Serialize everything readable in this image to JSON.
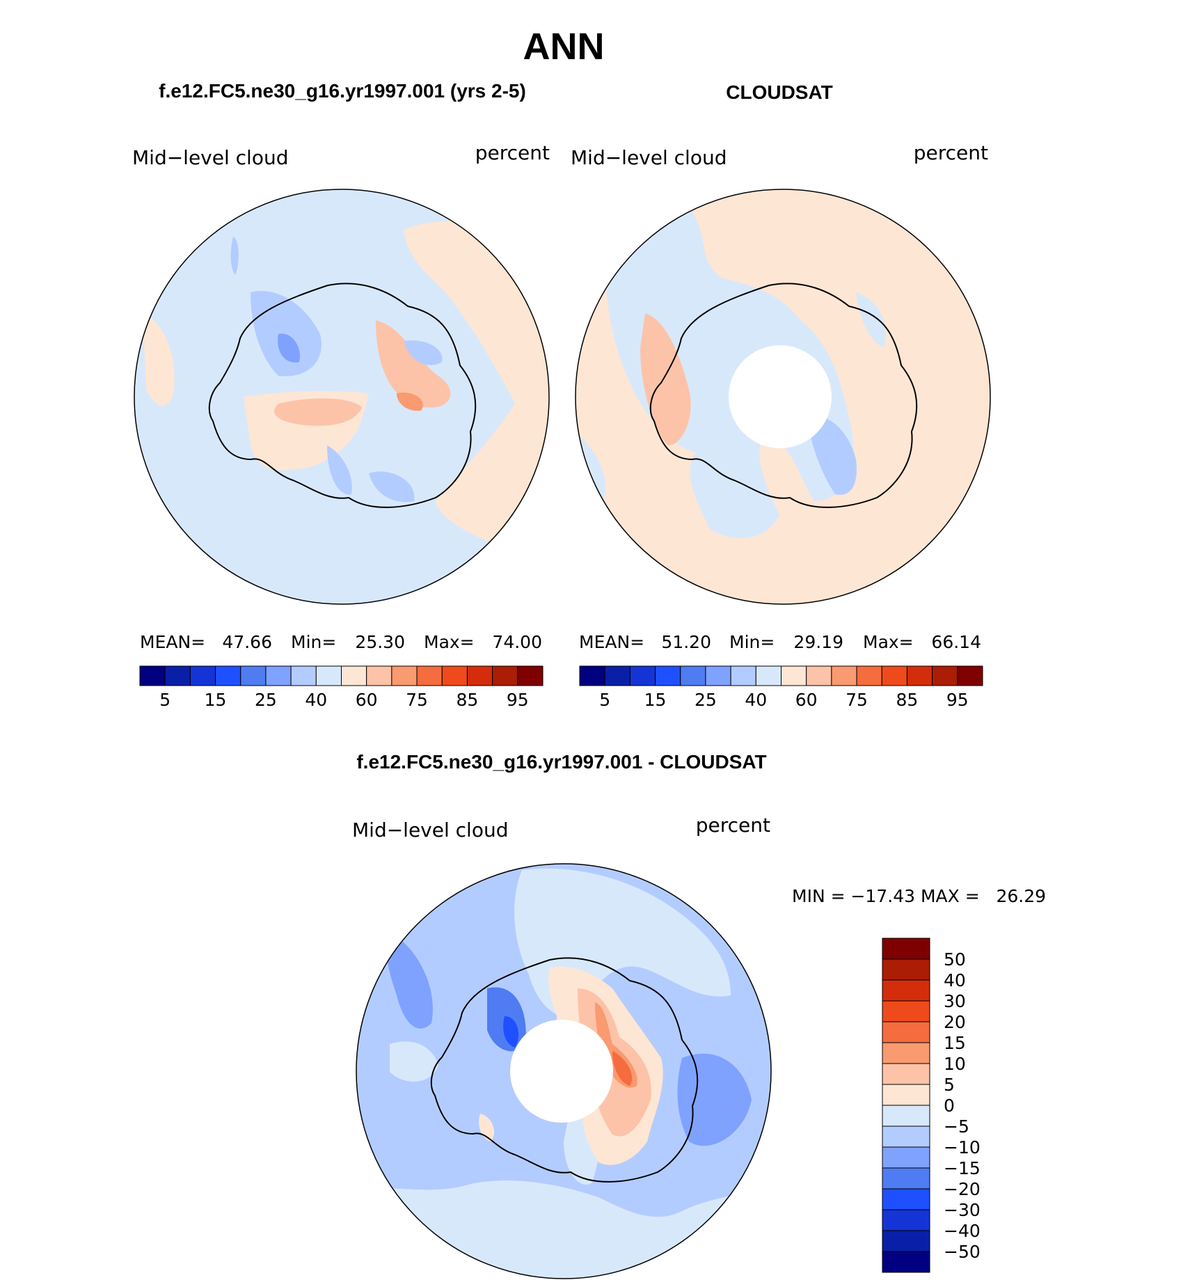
{
  "main_title": "ANN",
  "colors": {
    "abs_scale": [
      "#000080",
      "#0a1fa8",
      "#1434d6",
      "#1e50ff",
      "#4f7cf2",
      "#7fa2ff",
      "#b3ccff",
      "#d8e8fb",
      "#fde6d4",
      "#fcc3a8",
      "#f99a70",
      "#f56c3e",
      "#ef4a1c",
      "#d42d0b",
      "#ab1d04",
      "#7f0000"
    ],
    "diff_scale": [
      "#000080",
      "#0a1fa8",
      "#1434d6",
      "#1e50ff",
      "#4f7cf2",
      "#7fa2ff",
      "#b3ccff",
      "#d8e8fb",
      "#fde6d4",
      "#fcc3a8",
      "#f99a70",
      "#f56c3e",
      "#ef4a1c",
      "#d42d0b",
      "#ab1d04",
      "#7f0000"
    ],
    "land_outline": "#000000"
  },
  "chart_data": [
    {
      "type": "heatmap",
      "projection": "south-polar-stereographic",
      "panel_title": "f.e12.FC5.ne30_g16.yr1997.001 (yrs 2-5)",
      "variable_label": "Mid−level cloud",
      "units_label": "percent",
      "stats": {
        "mean_label": "MEAN=",
        "mean": "47.66",
        "min_label": "Min=",
        "min": "25.30",
        "max_label": "Max=",
        "max": "74.00"
      },
      "colorbar": {
        "orientation": "horizontal",
        "tick_labels": [
          "5",
          "15",
          "25",
          "40",
          "60",
          "75",
          "85",
          "95"
        ]
      },
      "dominant_range": [
        40,
        60
      ]
    },
    {
      "type": "heatmap",
      "projection": "south-polar-stereographic",
      "panel_title": "CLOUDSAT",
      "variable_label": "Mid−level cloud",
      "units_label": "percent",
      "stats": {
        "mean_label": "MEAN=",
        "mean": "51.20",
        "min_label": "Min=",
        "min": "29.19",
        "max_label": "Max=",
        "max": "66.14"
      },
      "colorbar": {
        "orientation": "horizontal",
        "tick_labels": [
          "5",
          "15",
          "25",
          "40",
          "60",
          "75",
          "85",
          "95"
        ]
      },
      "missing_data_near_pole": true
    },
    {
      "type": "heatmap",
      "projection": "south-polar-stereographic",
      "panel_title": "f.e12.FC5.ne30_g16.yr1997.001 - CLOUDSAT",
      "variable_label": "Mid−level cloud",
      "units_label": "percent",
      "stats_line": "MIN = −17.43 MAX =   26.29",
      "colorbar": {
        "orientation": "vertical",
        "tick_labels": [
          "50",
          "40",
          "30",
          "20",
          "15",
          "10",
          "5",
          "0",
          "−5",
          "−10",
          "−15",
          "−20",
          "−30",
          "−40",
          "−50"
        ]
      },
      "missing_data_near_pole": true
    }
  ]
}
